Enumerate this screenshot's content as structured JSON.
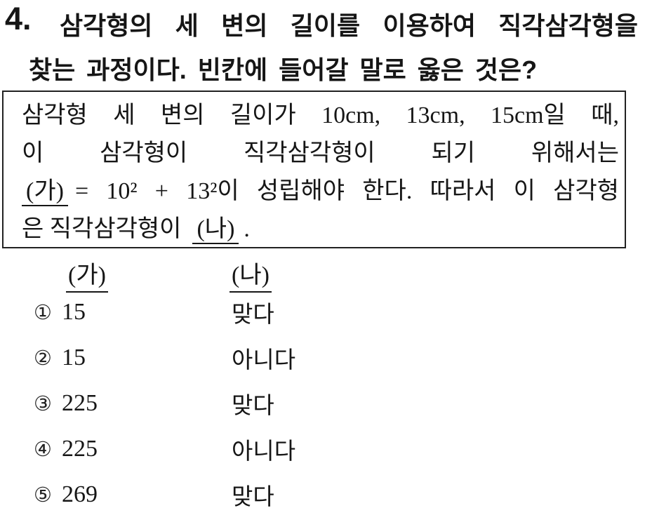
{
  "question": {
    "number": "4.",
    "title_line1": "삼각형의 세 변의 길이를 이용하여 직각삼각형을",
    "title_line2": "찾는 과정이다. 빈칸에 들어갈 말로 옳은 것은?"
  },
  "box": {
    "line1": "삼각형 세 변의 길이가 10cm, 13cm, 15cm일 때,",
    "line2": "이 삼각형이 직각삼각형이 되기 위해서는",
    "line3_blank": "(가)",
    "line3_rest": "= 10² + 13²이 성립해야 한다. 따라서 이 삼각형",
    "line4_pre": "은 직각삼각형이",
    "line4_blank": "(나)",
    "line4_period": "."
  },
  "choices": {
    "col1_header": "(가)",
    "col2_header": "(나)",
    "items": [
      {
        "marker": "①",
        "ga": "15",
        "na": "맞다"
      },
      {
        "marker": "②",
        "ga": "15",
        "na": "아니다"
      },
      {
        "marker": "③",
        "ga": "225",
        "na": "맞다"
      },
      {
        "marker": "④",
        "ga": "225",
        "na": "아니다"
      },
      {
        "marker": "⑤",
        "ga": "269",
        "na": "맞다"
      }
    ]
  }
}
